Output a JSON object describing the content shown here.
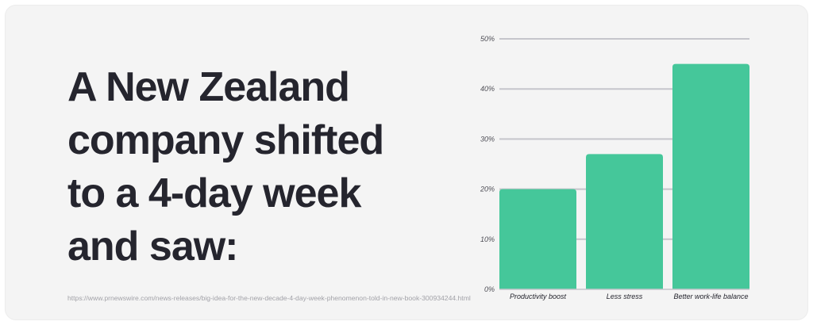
{
  "headline": {
    "lines": [
      "A New Zealand",
      "company shifted",
      "to a 4-day week",
      "and saw:"
    ]
  },
  "source": {
    "url": "https://www.prnewswire.com/news-releases/big-idea-for-the-new-decade-4-day-week-phenomenon-told-in-new-book-300934244.html"
  },
  "colors": {
    "bar": "#45c79a",
    "grid": "#c5c5cb",
    "text": "#25252e",
    "tick": "#4d4d55",
    "background": "#f4f4f4"
  },
  "chart_data": {
    "type": "bar",
    "categories": [
      "Productivity boost",
      "Less stress",
      "Better work-life balance"
    ],
    "values": [
      20,
      27,
      45
    ],
    "unit": "%",
    "yticks": [
      "0%",
      "10%",
      "20%",
      "30%",
      "40%",
      "50%"
    ],
    "ylim": [
      0,
      50
    ],
    "grid": true,
    "legend": "none"
  }
}
